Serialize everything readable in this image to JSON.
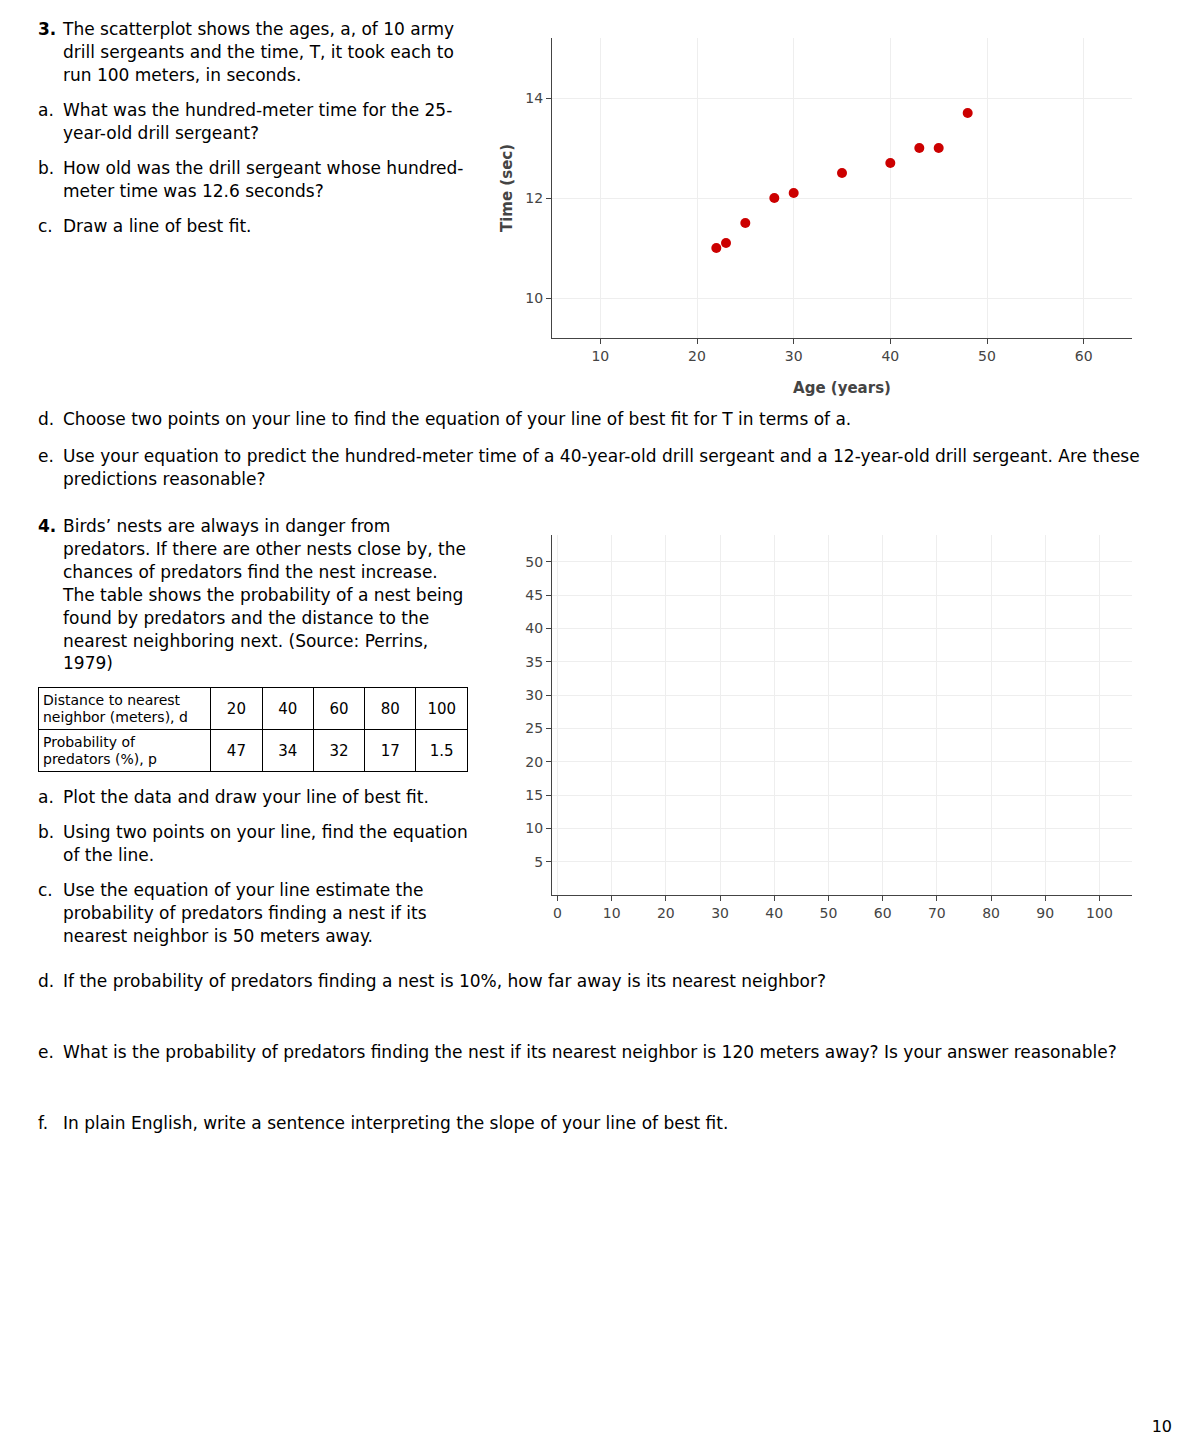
{
  "chart_data": [
    {
      "type": "scatter",
      "heading": {
        "label": "3.",
        "text": "The scatterplot shows the ages, a, of 10 army drill sergeants and the time, T, it took each to run 100 meters, in seconds."
      },
      "questions": [
        {
          "label": "a.",
          "text": "What was the hundred-meter time for the 25-year-old drill sergeant?"
        },
        {
          "label": "b.",
          "text": "How old was the drill sergeant whose hundred-meter time was 12.6 seconds?"
        },
        {
          "label": "c.",
          "text": "Draw a line of best fit."
        },
        {
          "label": "d.",
          "text": "Choose two points on your line to find the equation of your line of best fit for T in terms of a."
        },
        {
          "label": "e.",
          "text": "Use your equation to predict the hundred-meter time of a 40-year-old drill sergeant and a 12-year-old drill sergeant.  Are these predictions reasonable?"
        }
      ],
      "x": [
        22,
        23,
        25,
        28,
        30,
        35,
        40,
        43,
        45,
        48
      ],
      "values": [
        11.0,
        11.1,
        11.5,
        12.0,
        12.1,
        12.5,
        12.7,
        13.0,
        13.0,
        13.7
      ],
      "color": "#cc0000",
      "xlabel": "Age (years)",
      "ylabel": "Time (sec)",
      "xlim": [
        5,
        65
      ],
      "ylim": [
        9.2,
        15.2
      ],
      "xticks": [
        10,
        20,
        30,
        40,
        50,
        60
      ],
      "yticks": [
        10,
        12,
        14
      ],
      "grid": true
    },
    {
      "type": "scatter",
      "heading": {
        "label": "4.",
        "text": "Birds’ nests are always in danger from predators.  If there are other nests close by, the chances of predators find the nest increase.  The table shows the probability of a nest being found by predators and the distance to the nearest neighboring next.  (Source:  Perrins, 1979)"
      },
      "table": [
        {
          "label": "Distance to nearest neighbor (meters), d",
          "values": [
            20,
            40,
            60,
            80,
            100
          ]
        },
        {
          "label": "Probability of predators (%), p",
          "values": [
            47,
            34,
            32,
            17,
            1.5
          ]
        }
      ],
      "questions": [
        {
          "label": "a.",
          "text": "Plot the data and draw your line of best fit."
        },
        {
          "label": "b.",
          "text": "Using two points on your line, find the equation of the line."
        },
        {
          "label": "c.",
          "text": "Use the equation of your line estimate the probability of predators finding a nest if its nearest neighbor is 50 meters away."
        },
        {
          "label": "d.",
          "text": "If the probability of predators finding a nest is 10%, how far away is its nearest neighbor?"
        },
        {
          "label": "e.",
          "text": "What is the probability of predators finding the nest if its nearest neighbor is 120 meters away? Is your answer reasonable?"
        },
        {
          "label": "f.",
          "text": "In plain English, write a sentence interpreting the slope of your line of best fit."
        }
      ],
      "xlim": [
        -1,
        106
      ],
      "ylim": [
        0,
        54
      ],
      "xticks": [
        0,
        10,
        20,
        30,
        40,
        50,
        60,
        70,
        80,
        90,
        100
      ],
      "yticks": [
        5,
        10,
        15,
        20,
        25,
        30,
        35,
        40,
        45,
        50
      ],
      "grid": true
    }
  ],
  "page_number": 10
}
